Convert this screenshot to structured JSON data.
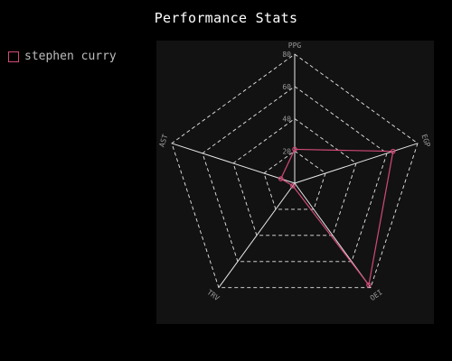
{
  "chart_data": {
    "type": "radar",
    "title": "Performance Stats",
    "axes": [
      "PPG",
      "EGP",
      "OEI",
      "TRV",
      "AST"
    ],
    "radial_ticks": [
      "20",
      "40",
      "60",
      "80"
    ],
    "rlim": [
      0,
      80
    ],
    "grid": true,
    "legend_position": "top-left",
    "series": [
      {
        "name": "stephen curry",
        "values": [
          21,
          64,
          78,
          2,
          9
        ],
        "color": "#d04a78"
      }
    ]
  },
  "colors": {
    "background": "#000000",
    "plot_background": "#121212",
    "grid": "#e8e8e8",
    "label": "#9a9a9a"
  }
}
